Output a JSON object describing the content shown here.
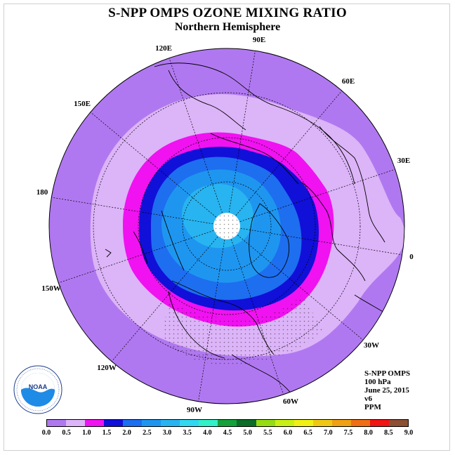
{
  "title": "S-NPP OMPS OZONE MIXING RATIO",
  "subtitle": "Northern Hemisphere",
  "longitude_labels": [
    "90E",
    "60E",
    "30E",
    "0",
    "30W",
    "60W",
    "90W",
    "120W",
    "150W",
    "180",
    "150E",
    "120E"
  ],
  "info": {
    "instrument": "S-NPP OMPS",
    "level": "100 hPa",
    "date": "June 25, 2015",
    "version": "v6",
    "units": "PPM"
  },
  "colorbar": {
    "ticks": [
      "0.0",
      "0.5",
      "1.0",
      "1.5",
      "2.0",
      "2.5",
      "3.0",
      "3.5",
      "4.0",
      "4.5",
      "5.0",
      "5.5",
      "6.0",
      "6.5",
      "7.0",
      "7.5",
      "8.0",
      "8.5",
      "9.0"
    ],
    "colors": [
      "#b078f0",
      "#dcb4f8",
      "#f012f0",
      "#1010d8",
      "#1e6ef0",
      "#1e96f0",
      "#28b4f0",
      "#32d8f0",
      "#32f0c8",
      "#14a03c",
      "#0a6e28",
      "#96dc14",
      "#c8f014",
      "#f0f014",
      "#f0c814",
      "#f0a014",
      "#f06e14",
      "#f01414",
      "#8c5032"
    ]
  },
  "logo": {
    "text": "NOAA",
    "icon": "noaa-logo-icon"
  }
}
